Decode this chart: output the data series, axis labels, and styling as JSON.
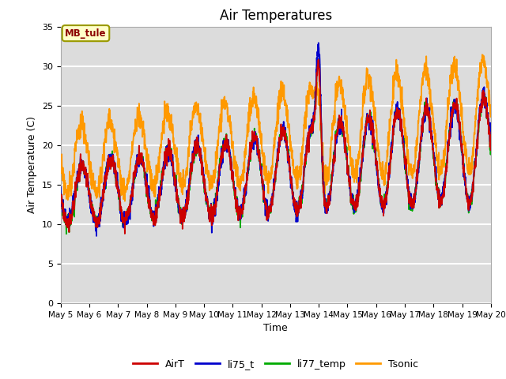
{
  "title": "Air Temperatures",
  "xlabel": "Time",
  "ylabel": "Air Temperature (C)",
  "ylim": [
    0,
    35
  ],
  "yticks": [
    0,
    5,
    10,
    15,
    20,
    25,
    30,
    35
  ],
  "annotation_text": "MB_tule",
  "annotation_color": "#8B0000",
  "annotation_bg": "#FFFFC8",
  "annotation_border": "#999900",
  "series_colors": {
    "AirT": "#CC0000",
    "li75_t": "#0000CC",
    "li77_temp": "#00AA00",
    "Tsonic": "#FF9900"
  },
  "bg_color": "#DCDCDC",
  "grid_color": "#FFFFFF",
  "fig_bg": "#FFFFFF",
  "title_fontsize": 12,
  "axis_fontsize": 9,
  "tick_fontsize": 7.5
}
